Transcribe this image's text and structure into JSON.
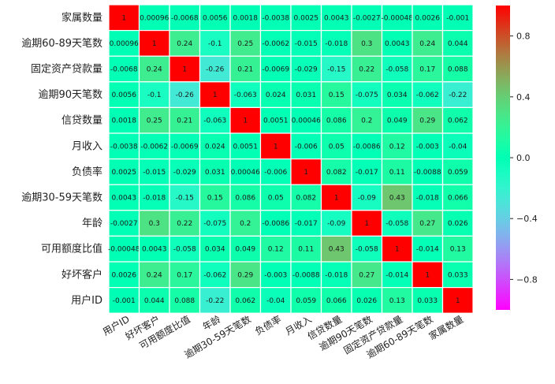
{
  "chart_data": {
    "type": "heatmap",
    "title": "",
    "row_labels": [
      "家属数量",
      "逾期60-89天笔数",
      "固定资产贷款量",
      "逾期90天笔数",
      "信贷数量",
      "月收入",
      "负债率",
      "逾期30-59天笔数",
      "年龄",
      "可用额度比值",
      "好坏客户",
      "用户ID"
    ],
    "col_labels": [
      "用户ID",
      "好坏客户",
      "可用额度比值",
      "年龄",
      "逾期30-59天笔数",
      "负债率",
      "月收入",
      "信贷数量",
      "逾期90天笔数",
      "固定资产贷款量",
      "逾期60-89天笔数",
      "家属数量"
    ],
    "values": [
      [
        1,
        0.00096,
        -0.0068,
        0.0056,
        0.0018,
        -0.0038,
        0.0025,
        0.0043,
        -0.0027,
        -0.00048,
        0.0026,
        -0.001
      ],
      [
        0.00096,
        1,
        0.24,
        -0.1,
        0.25,
        -0.0062,
        -0.015,
        -0.018,
        0.3,
        0.0043,
        0.24,
        0.044
      ],
      [
        -0.0068,
        0.24,
        1,
        -0.26,
        0.21,
        -0.0069,
        -0.029,
        -0.15,
        0.22,
        -0.058,
        0.17,
        0.088
      ],
      [
        0.0056,
        -0.1,
        -0.26,
        1,
        -0.063,
        0.024,
        0.031,
        0.15,
        -0.075,
        0.034,
        -0.062,
        -0.22
      ],
      [
        0.0018,
        0.25,
        0.21,
        -0.063,
        1,
        0.0051,
        0.00046,
        0.086,
        0.2,
        0.049,
        0.29,
        0.062
      ],
      [
        -0.0038,
        -0.0062,
        -0.0069,
        0.024,
        0.0051,
        1,
        -0.006,
        0.05,
        -0.0086,
        0.12,
        -0.003,
        -0.04
      ],
      [
        0.0025,
        -0.015,
        -0.029,
        0.031,
        0.00046,
        -0.006,
        1,
        0.082,
        -0.017,
        0.11,
        -0.0088,
        0.059
      ],
      [
        0.0043,
        -0.018,
        -0.15,
        0.15,
        0.086,
        0.05,
        0.082,
        1,
        -0.09,
        0.43,
        -0.018,
        0.066
      ],
      [
        -0.0027,
        0.3,
        0.22,
        -0.075,
        0.2,
        -0.0086,
        -0.017,
        -0.09,
        1,
        -0.058,
        0.27,
        0.026
      ],
      [
        -0.00048,
        0.0043,
        -0.058,
        0.034,
        0.049,
        0.12,
        0.11,
        0.43,
        -0.058,
        1,
        -0.014,
        0.13
      ],
      [
        0.0026,
        0.24,
        0.17,
        -0.062,
        0.29,
        -0.003,
        -0.0088,
        -0.018,
        0.27,
        -0.014,
        1,
        0.033
      ],
      [
        -0.001,
        0.044,
        0.088,
        -0.22,
        0.062,
        -0.04,
        0.059,
        0.066,
        0.026,
        0.13,
        0.033,
        1
      ]
    ],
    "cell_labels": [
      [
        "1",
        "0.00096",
        "-0.0068",
        "0.0056",
        "0.0018",
        "-0.0038",
        "0.0025",
        "0.0043",
        "-0.0027",
        "-0.00048",
        "0.0026",
        "-0.001"
      ],
      [
        "0.00096",
        "1",
        "0.24",
        "-0.1",
        "0.25",
        "-0.0062",
        "-0.015",
        "-0.018",
        "0.3",
        "0.0043",
        "0.24",
        "0.044"
      ],
      [
        "-0.0068",
        "0.24",
        "1",
        "-0.26",
        "0.21",
        "-0.0069",
        "-0.029",
        "-0.15",
        "0.22",
        "-0.058",
        "0.17",
        "0.088"
      ],
      [
        "0.0056",
        "-0.1",
        "-0.26",
        "1",
        "-0.063",
        "0.024",
        "0.031",
        "0.15",
        "-0.075",
        "0.034",
        "-0.062",
        "-0.22"
      ],
      [
        "0.0018",
        "0.25",
        "0.21",
        "-0.063",
        "1",
        "0.0051",
        "0.00046",
        "0.086",
        "0.2",
        "0.049",
        "0.29",
        "0.062"
      ],
      [
        "-0.0038",
        "-0.0062",
        "-0.0069",
        "0.024",
        "0.0051",
        "1",
        "-0.006",
        "0.05",
        "-0.0086",
        "0.12",
        "-0.003",
        "-0.04"
      ],
      [
        "0.0025",
        "-0.015",
        "-0.029",
        "0.031",
        "0.00046",
        "-0.006",
        "1",
        "0.082",
        "-0.017",
        "0.11",
        "-0.0088",
        "0.059"
      ],
      [
        "0.0043",
        "-0.018",
        "-0.15",
        "0.15",
        "0.086",
        "0.05",
        "0.082",
        "1",
        "-0.09",
        "0.43",
        "-0.018",
        "0.066"
      ],
      [
        "-0.0027",
        "0.3",
        "0.22",
        "-0.075",
        "0.2",
        "-0.0086",
        "-0.017",
        "-0.09",
        "1",
        "-0.058",
        "0.27",
        "0.026"
      ],
      [
        "-0.00048",
        "0.0043",
        "-0.058",
        "0.034",
        "0.049",
        "0.12",
        "0.11",
        "0.43",
        "-0.058",
        "1",
        "-0.014",
        "0.13"
      ],
      [
        "0.0026",
        "0.24",
        "0.17",
        "-0.062",
        "0.29",
        "-0.003",
        "-0.0088",
        "-0.018",
        "0.27",
        "-0.014",
        "1",
        "0.033"
      ],
      [
        "-0.001",
        "0.044",
        "0.088",
        "-0.22",
        "0.062",
        "-0.04",
        "0.059",
        "0.066",
        "0.026",
        "0.13",
        "0.033",
        "1"
      ]
    ],
    "colorbar": {
      "range": [
        -1,
        1
      ],
      "ticks": [
        0.8,
        0.4,
        0.0,
        -0.4,
        -0.8
      ],
      "tick_labels": [
        "0.8",
        "0.4",
        "0.0",
        "−0.4",
        "−0.8"
      ],
      "colormap": "rainbow",
      "low_color": "#8000ff",
      "high_color": "#ff0000"
    },
    "grid_line_color": "#ffffff",
    "legend_placement": "right"
  }
}
